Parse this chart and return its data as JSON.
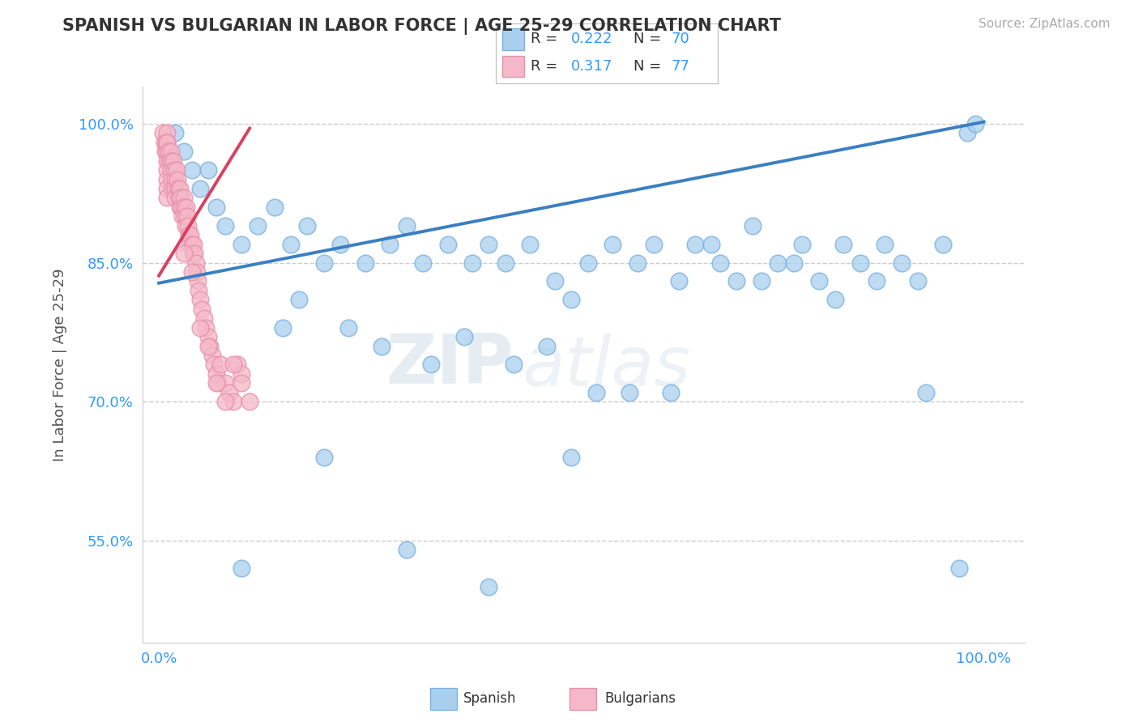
{
  "title": "SPANISH VS BULGARIAN IN LABOR FORCE | AGE 25-29 CORRELATION CHART",
  "source": "Source: ZipAtlas.com",
  "ylabel": "In Labor Force | Age 25-29",
  "xlim": [
    -0.02,
    1.05
  ],
  "ylim": [
    0.44,
    1.04
  ],
  "ytick_positions": [
    0.55,
    0.7,
    0.85,
    1.0
  ],
  "yticklabels": [
    "55.0%",
    "70.0%",
    "85.0%",
    "100.0%"
  ],
  "xtick_positions": [
    0.0,
    0.1,
    0.2,
    0.3,
    0.4,
    0.5,
    0.6,
    0.7,
    0.8,
    0.9,
    1.0
  ],
  "xticklabels": [
    "0.0%",
    "",
    "",
    "",
    "",
    "",
    "",
    "",
    "",
    "",
    "100.0%"
  ],
  "grid_color": "#cccccc",
  "background_color": "#ffffff",
  "spanish_color": "#a8d0ee",
  "bulgarian_color": "#f5b8c8",
  "spanish_edge": "#7ab0de",
  "bulgarian_edge": "#e890a8",
  "trend_spanish_color": "#3a7fc1",
  "trend_bulgarian_color": "#d94060",
  "legend_r_spanish": "0.222",
  "legend_n_spanish": "70",
  "legend_r_bulgarian": "0.317",
  "legend_n_bulgarian": "77",
  "watermark_zip": "ZIP",
  "watermark_atlas": "atlas",
  "spanish_x": [
    0.02,
    0.03,
    0.04,
    0.02,
    0.03,
    0.05,
    0.06,
    0.07,
    0.08,
    0.1,
    0.12,
    0.14,
    0.16,
    0.18,
    0.2,
    0.22,
    0.25,
    0.28,
    0.3,
    0.32,
    0.35,
    0.38,
    0.4,
    0.42,
    0.45,
    0.48,
    0.5,
    0.52,
    0.55,
    0.58,
    0.6,
    0.63,
    0.65,
    0.68,
    0.7,
    0.72,
    0.75,
    0.78,
    0.8,
    0.82,
    0.85,
    0.88,
    0.9,
    0.92,
    0.95,
    0.98,
    0.99,
    0.15,
    0.17,
    0.23,
    0.27,
    0.33,
    0.37,
    0.43,
    0.47,
    0.53,
    0.57,
    0.62,
    0.67,
    0.73,
    0.77,
    0.83,
    0.87,
    0.93,
    0.97,
    0.1,
    0.2,
    0.3,
    0.4,
    0.5
  ],
  "spanish_y": [
    0.99,
    0.97,
    0.95,
    0.93,
    0.91,
    0.93,
    0.95,
    0.91,
    0.89,
    0.87,
    0.89,
    0.91,
    0.87,
    0.89,
    0.85,
    0.87,
    0.85,
    0.87,
    0.89,
    0.85,
    0.87,
    0.85,
    0.87,
    0.85,
    0.87,
    0.83,
    0.81,
    0.85,
    0.87,
    0.85,
    0.87,
    0.83,
    0.87,
    0.85,
    0.83,
    0.89,
    0.85,
    0.87,
    0.83,
    0.81,
    0.85,
    0.87,
    0.85,
    0.83,
    0.87,
    0.99,
    1.0,
    0.78,
    0.81,
    0.78,
    0.76,
    0.74,
    0.77,
    0.74,
    0.76,
    0.71,
    0.71,
    0.71,
    0.87,
    0.83,
    0.85,
    0.87,
    0.83,
    0.71,
    0.52,
    0.52,
    0.64,
    0.54,
    0.5,
    0.64
  ],
  "bulgarian_x": [
    0.005,
    0.007,
    0.008,
    0.009,
    0.01,
    0.01,
    0.01,
    0.01,
    0.01,
    0.01,
    0.01,
    0.01,
    0.01,
    0.012,
    0.013,
    0.015,
    0.015,
    0.015,
    0.016,
    0.017,
    0.018,
    0.019,
    0.02,
    0.02,
    0.02,
    0.021,
    0.022,
    0.023,
    0.024,
    0.025,
    0.025,
    0.026,
    0.027,
    0.028,
    0.03,
    0.03,
    0.031,
    0.032,
    0.033,
    0.034,
    0.035,
    0.036,
    0.037,
    0.038,
    0.04,
    0.041,
    0.042,
    0.043,
    0.045,
    0.046,
    0.047,
    0.048,
    0.05,
    0.052,
    0.055,
    0.057,
    0.06,
    0.062,
    0.065,
    0.067,
    0.07,
    0.072,
    0.075,
    0.08,
    0.085,
    0.09,
    0.095,
    0.1,
    0.03,
    0.04,
    0.05,
    0.06,
    0.07,
    0.08,
    0.09,
    0.1,
    0.11
  ],
  "bulgarian_y": [
    0.99,
    0.98,
    0.97,
    0.98,
    0.99,
    0.98,
    0.97,
    0.96,
    0.95,
    0.94,
    0.93,
    0.92,
    0.98,
    0.97,
    0.96,
    0.97,
    0.96,
    0.95,
    0.94,
    0.93,
    0.96,
    0.95,
    0.94,
    0.93,
    0.92,
    0.95,
    0.94,
    0.93,
    0.92,
    0.91,
    0.93,
    0.92,
    0.91,
    0.9,
    0.92,
    0.91,
    0.9,
    0.89,
    0.91,
    0.9,
    0.89,
    0.88,
    0.87,
    0.88,
    0.87,
    0.86,
    0.87,
    0.86,
    0.85,
    0.84,
    0.83,
    0.82,
    0.81,
    0.8,
    0.79,
    0.78,
    0.77,
    0.76,
    0.75,
    0.74,
    0.73,
    0.72,
    0.74,
    0.72,
    0.71,
    0.7,
    0.74,
    0.73,
    0.86,
    0.84,
    0.78,
    0.76,
    0.72,
    0.7,
    0.74,
    0.72,
    0.7
  ],
  "trend_spanish_x0": 0.0,
  "trend_spanish_y0": 0.828,
  "trend_spanish_x1": 1.0,
  "trend_spanish_y1": 1.002,
  "trend_bulgarian_x0": 0.0,
  "trend_bulgarian_x1": 0.11,
  "trend_bulgarian_y0": 0.836,
  "trend_bulgarian_y1": 0.995
}
